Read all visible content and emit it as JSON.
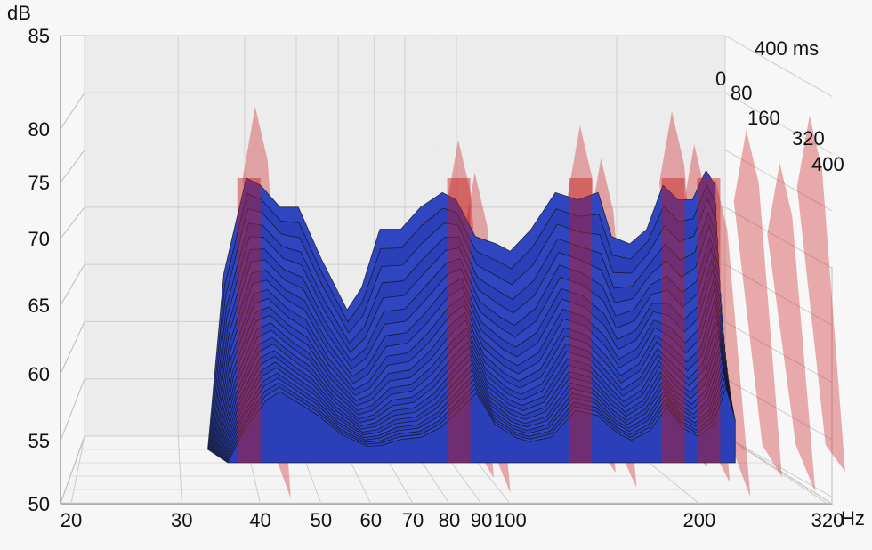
{
  "chart_data": {
    "type": "waterfall",
    "title": "",
    "ylabel": "dB",
    "xlabel": "Hz",
    "zlabel": "ms",
    "ylim": [
      50,
      85
    ],
    "xlim": [
      20,
      320
    ],
    "xscale": "log",
    "y_ticks": [
      "50",
      "55",
      "60",
      "65",
      "70",
      "75",
      "80",
      "85"
    ],
    "x_ticks": [
      "20",
      "30",
      "40",
      "50",
      "60",
      "70",
      "80",
      "90",
      "100",
      "200",
      "320"
    ],
    "x_tick_values": [
      20,
      30,
      40,
      50,
      60,
      70,
      80,
      90,
      100,
      200,
      320
    ],
    "x_unit": "Hz",
    "time_axis_title": "400 ms",
    "time_ticks": [
      "0",
      "80",
      "160",
      "320",
      "400"
    ],
    "floor_db": 54,
    "slices": 26,
    "series": [
      {
        "name": "0 ms",
        "x": [
          33,
          35,
          38,
          40,
          43,
          46,
          50,
          55,
          58,
          62,
          67,
          72,
          78,
          82,
          88,
          95,
          100,
          108,
          118,
          128,
          138,
          145,
          155,
          165,
          175,
          185,
          195,
          205,
          212
        ],
        "values": [
          54,
          66,
          72.5,
          72,
          70.5,
          70.5,
          67,
          63.5,
          65,
          69,
          69,
          70.5,
          71.5,
          71,
          68.5,
          68,
          67.5,
          69,
          71.5,
          71,
          71.5,
          68.5,
          68,
          69,
          72,
          71,
          71,
          73,
          72
        ]
      }
    ],
    "resonances_hz": [
      38,
      80,
      85,
      125,
      135,
      175,
      190,
      205,
      230,
      260,
      290
    ]
  }
}
